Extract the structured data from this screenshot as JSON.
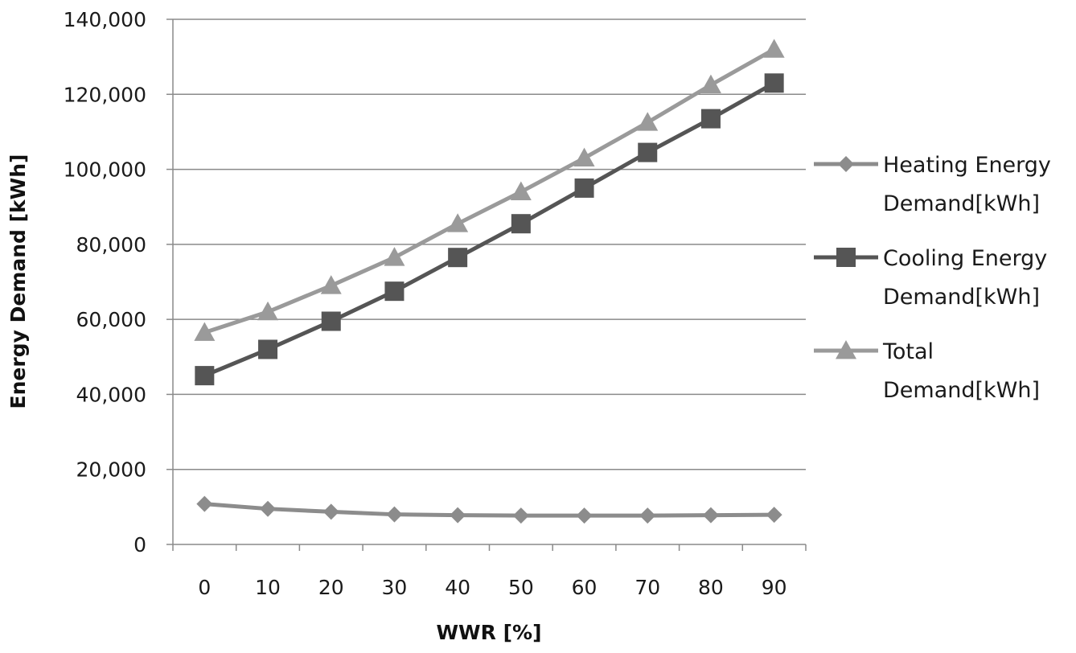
{
  "chart_data": {
    "type": "line",
    "xlabel": "WWR [%]",
    "ylabel": "Energy Demand  [kWh]",
    "categories": [
      "0",
      "10",
      "20",
      "30",
      "40",
      "50",
      "60",
      "70",
      "80",
      "90"
    ],
    "ylim": [
      0,
      140000
    ],
    "yticks": [
      0,
      20000,
      40000,
      60000,
      80000,
      100000,
      120000,
      140000
    ],
    "ytick_labels": [
      "0",
      "20,000",
      "40,000",
      "60,000",
      "80,000",
      "100,000",
      "120,000",
      "140,000"
    ],
    "grid": "horizontal",
    "legend_position": "right",
    "series": [
      {
        "name": "Heating Energy Demand[kWh]",
        "legend_lines": [
          "Heating Energy",
          "Demand[kWh]"
        ],
        "marker": "diamond",
        "color": "#8c8c8c",
        "values": [
          10800,
          9500,
          8700,
          8000,
          7800,
          7700,
          7700,
          7700,
          7800,
          7900
        ]
      },
      {
        "name": "Cooling Energy Demand[kWh]",
        "legend_lines": [
          "Cooling Energy",
          "Demand[kWh]"
        ],
        "marker": "square",
        "color": "#555555",
        "values": [
          45000,
          52000,
          59500,
          67500,
          76500,
          85500,
          95000,
          104500,
          113500,
          123000
        ]
      },
      {
        "name": "Total Demand[kWh]",
        "legend_lines": [
          "Total",
          "Demand[kWh]"
        ],
        "marker": "triangle",
        "color": "#9a9a9a",
        "values": [
          56500,
          62000,
          69000,
          76500,
          85500,
          94000,
          103000,
          112500,
          122500,
          132000
        ]
      }
    ]
  }
}
